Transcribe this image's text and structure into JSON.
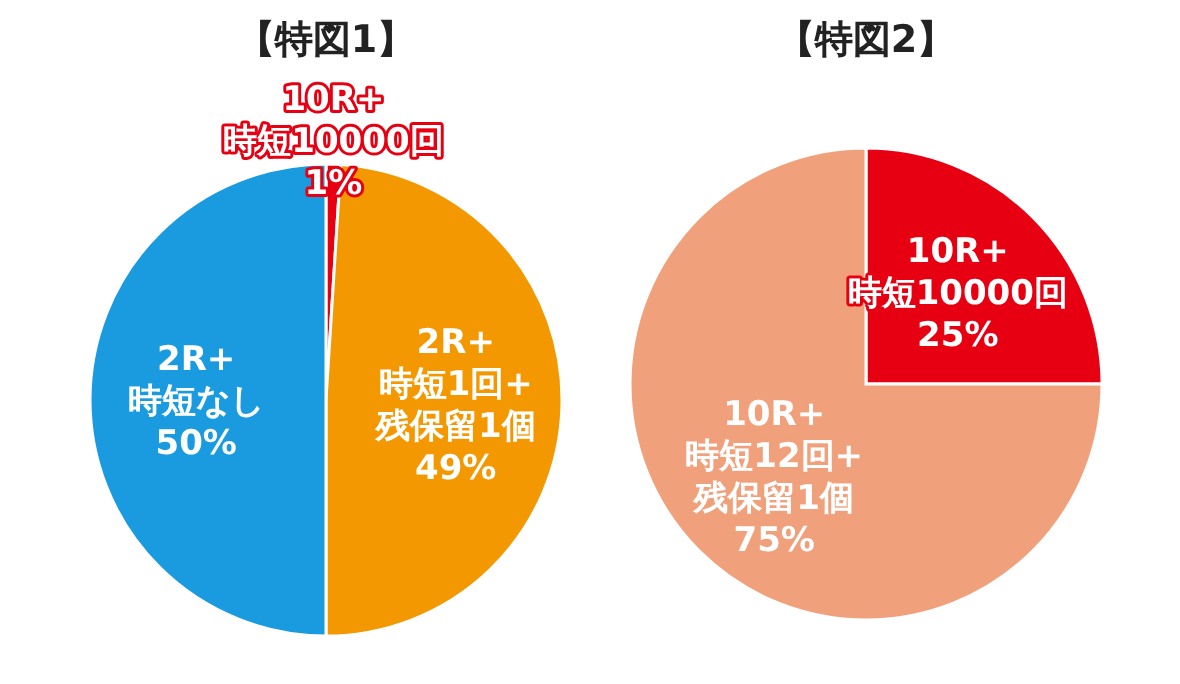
{
  "chart_data": [
    {
      "type": "pie",
      "title": "【特図1】",
      "categories": [
        "10R+\n時短10000回",
        "2R+\n時短1回+\n残保留1個",
        "2R+\n時短なし"
      ],
      "values": [
        1,
        49,
        50
      ],
      "colors": [
        "#e60012",
        "#f39800",
        "#1a9be0"
      ],
      "value_labels": [
        "1%",
        "49%",
        "50%"
      ]
    },
    {
      "type": "pie",
      "title": "【特図2】",
      "categories": [
        "10R+\n時短10000回",
        "10R+\n時短12回+\n残保留1個"
      ],
      "values": [
        25,
        75
      ],
      "colors": [
        "#e60012",
        "#f0a07a"
      ],
      "value_labels": [
        "25%",
        "75%"
      ]
    }
  ]
}
